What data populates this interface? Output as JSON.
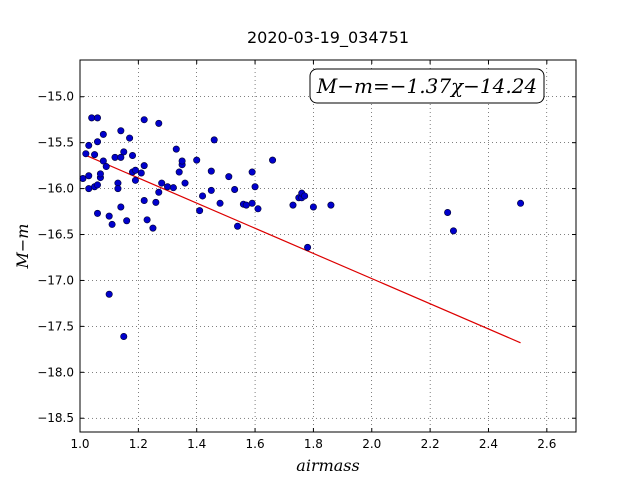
{
  "chart_data": {
    "type": "scatter",
    "title": "2020-03-19_034751",
    "xlabel": "airmass",
    "ylabel": "M−m",
    "annotation": "M−m=−1.37χ−14.24",
    "xlim": [
      1.0,
      2.7
    ],
    "ylim": [
      -18.65,
      -14.6
    ],
    "y_inverted": true,
    "grid": true,
    "x_ticks": [
      1.0,
      1.2,
      1.4,
      1.6,
      1.8,
      2.0,
      2.2,
      2.4,
      2.6
    ],
    "x_tick_labels": [
      "1.0",
      "1.2",
      "1.4",
      "1.6",
      "1.8",
      "2.0",
      "2.2",
      "2.4",
      "2.6"
    ],
    "y_ticks": [
      -15.0,
      -15.5,
      -16.0,
      -16.5,
      -17.0,
      -17.5,
      -18.0,
      -18.5
    ],
    "y_tick_labels": [
      "−15.0",
      "−15.5",
      "−16.0",
      "−16.5",
      "−17.0",
      "−17.5",
      "−18.0",
      "−18.5"
    ],
    "point_color": "#0000cc",
    "line_color": "#dd0000",
    "fit": {
      "slope": -1.37,
      "intercept": -14.24,
      "x_range": [
        1.02,
        2.51
      ]
    },
    "points": [
      [
        1.01,
        -15.89
      ],
      [
        1.02,
        -15.62
      ],
      [
        1.03,
        -15.53
      ],
      [
        1.03,
        -15.86
      ],
      [
        1.03,
        -16.0
      ],
      [
        1.04,
        -15.23
      ],
      [
        1.05,
        -15.63
      ],
      [
        1.05,
        -15.98
      ],
      [
        1.06,
        -15.23
      ],
      [
        1.06,
        -15.49
      ],
      [
        1.06,
        -16.27
      ],
      [
        1.06,
        -15.96
      ],
      [
        1.07,
        -15.88
      ],
      [
        1.07,
        -15.84
      ],
      [
        1.08,
        -15.41
      ],
      [
        1.08,
        -15.7
      ],
      [
        1.09,
        -15.76
      ],
      [
        1.1,
        -16.3
      ],
      [
        1.1,
        -17.15
      ],
      [
        1.11,
        -16.39
      ],
      [
        1.12,
        -15.66
      ],
      [
        1.13,
        -15.94
      ],
      [
        1.13,
        -16.0
      ],
      [
        1.14,
        -15.66
      ],
      [
        1.14,
        -15.37
      ],
      [
        1.14,
        -16.2
      ],
      [
        1.15,
        -15.6
      ],
      [
        1.15,
        -17.61
      ],
      [
        1.16,
        -16.35
      ],
      [
        1.17,
        -15.45
      ],
      [
        1.18,
        -15.64
      ],
      [
        1.18,
        -15.82
      ],
      [
        1.19,
        -15.91
      ],
      [
        1.19,
        -15.8
      ],
      [
        1.21,
        -15.83
      ],
      [
        1.22,
        -15.25
      ],
      [
        1.22,
        -15.75
      ],
      [
        1.22,
        -16.13
      ],
      [
        1.23,
        -16.34
      ],
      [
        1.25,
        -16.43
      ],
      [
        1.26,
        -16.15
      ],
      [
        1.27,
        -15.29
      ],
      [
        1.27,
        -16.04
      ],
      [
        1.28,
        -15.94
      ],
      [
        1.3,
        -15.98
      ],
      [
        1.32,
        -15.99
      ],
      [
        1.33,
        -15.57
      ],
      [
        1.34,
        -15.82
      ],
      [
        1.35,
        -15.74
      ],
      [
        1.35,
        -15.7
      ],
      [
        1.36,
        -15.94
      ],
      [
        1.4,
        -15.69
      ],
      [
        1.41,
        -16.24
      ],
      [
        1.42,
        -16.08
      ],
      [
        1.45,
        -15.81
      ],
      [
        1.45,
        -16.02
      ],
      [
        1.46,
        -15.47
      ],
      [
        1.48,
        -16.16
      ],
      [
        1.51,
        -15.87
      ],
      [
        1.53,
        -16.01
      ],
      [
        1.54,
        -16.41
      ],
      [
        1.56,
        -16.17
      ],
      [
        1.57,
        -16.18
      ],
      [
        1.59,
        -16.16
      ],
      [
        1.59,
        -15.82
      ],
      [
        1.6,
        -15.98
      ],
      [
        1.61,
        -16.22
      ],
      [
        1.66,
        -15.69
      ],
      [
        1.73,
        -16.18
      ],
      [
        1.75,
        -16.1
      ],
      [
        1.76,
        -16.1
      ],
      [
        1.76,
        -16.05
      ],
      [
        1.77,
        -16.08
      ],
      [
        1.78,
        -16.64
      ],
      [
        1.8,
        -16.2
      ],
      [
        1.86,
        -16.18
      ],
      [
        2.26,
        -16.26
      ],
      [
        2.28,
        -16.46
      ],
      [
        2.51,
        -16.16
      ]
    ]
  }
}
